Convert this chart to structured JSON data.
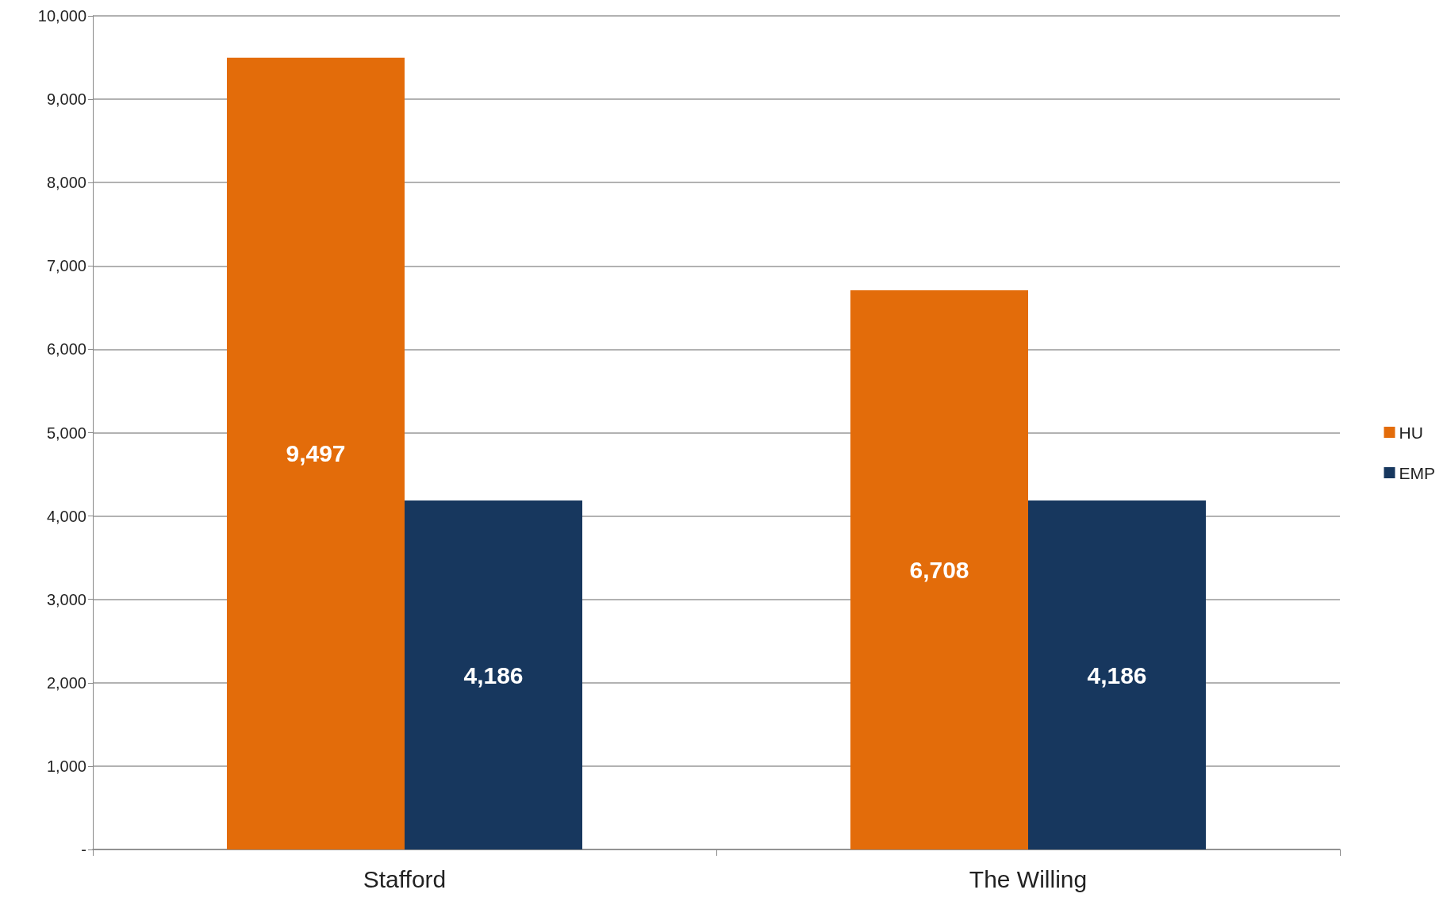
{
  "chart_data": {
    "type": "bar",
    "categories": [
      "Stafford",
      "The Willing"
    ],
    "series": [
      {
        "name": "HU",
        "color": "#e36c0a",
        "values": [
          9497,
          6708
        ],
        "value_labels": [
          "9,497",
          "6,708"
        ]
      },
      {
        "name": "EMP",
        "color": "#17375e",
        "values": [
          4186,
          4186
        ],
        "value_labels": [
          "4,186",
          "4,186"
        ]
      }
    ],
    "ylim": [
      0,
      10000
    ],
    "yticks": [
      {
        "value": 0,
        "label": "-"
      },
      {
        "value": 1000,
        "label": "1,000"
      },
      {
        "value": 2000,
        "label": "2,000"
      },
      {
        "value": 3000,
        "label": "3,000"
      },
      {
        "value": 4000,
        "label": "4,000"
      },
      {
        "value": 5000,
        "label": "5,000"
      },
      {
        "value": 6000,
        "label": "6,000"
      },
      {
        "value": 7000,
        "label": "7,000"
      },
      {
        "value": 8000,
        "label": "8,000"
      },
      {
        "value": 9000,
        "label": "9,000"
      },
      {
        "value": 10000,
        "label": "10,000"
      }
    ],
    "grid": "y",
    "legend": "right"
  }
}
